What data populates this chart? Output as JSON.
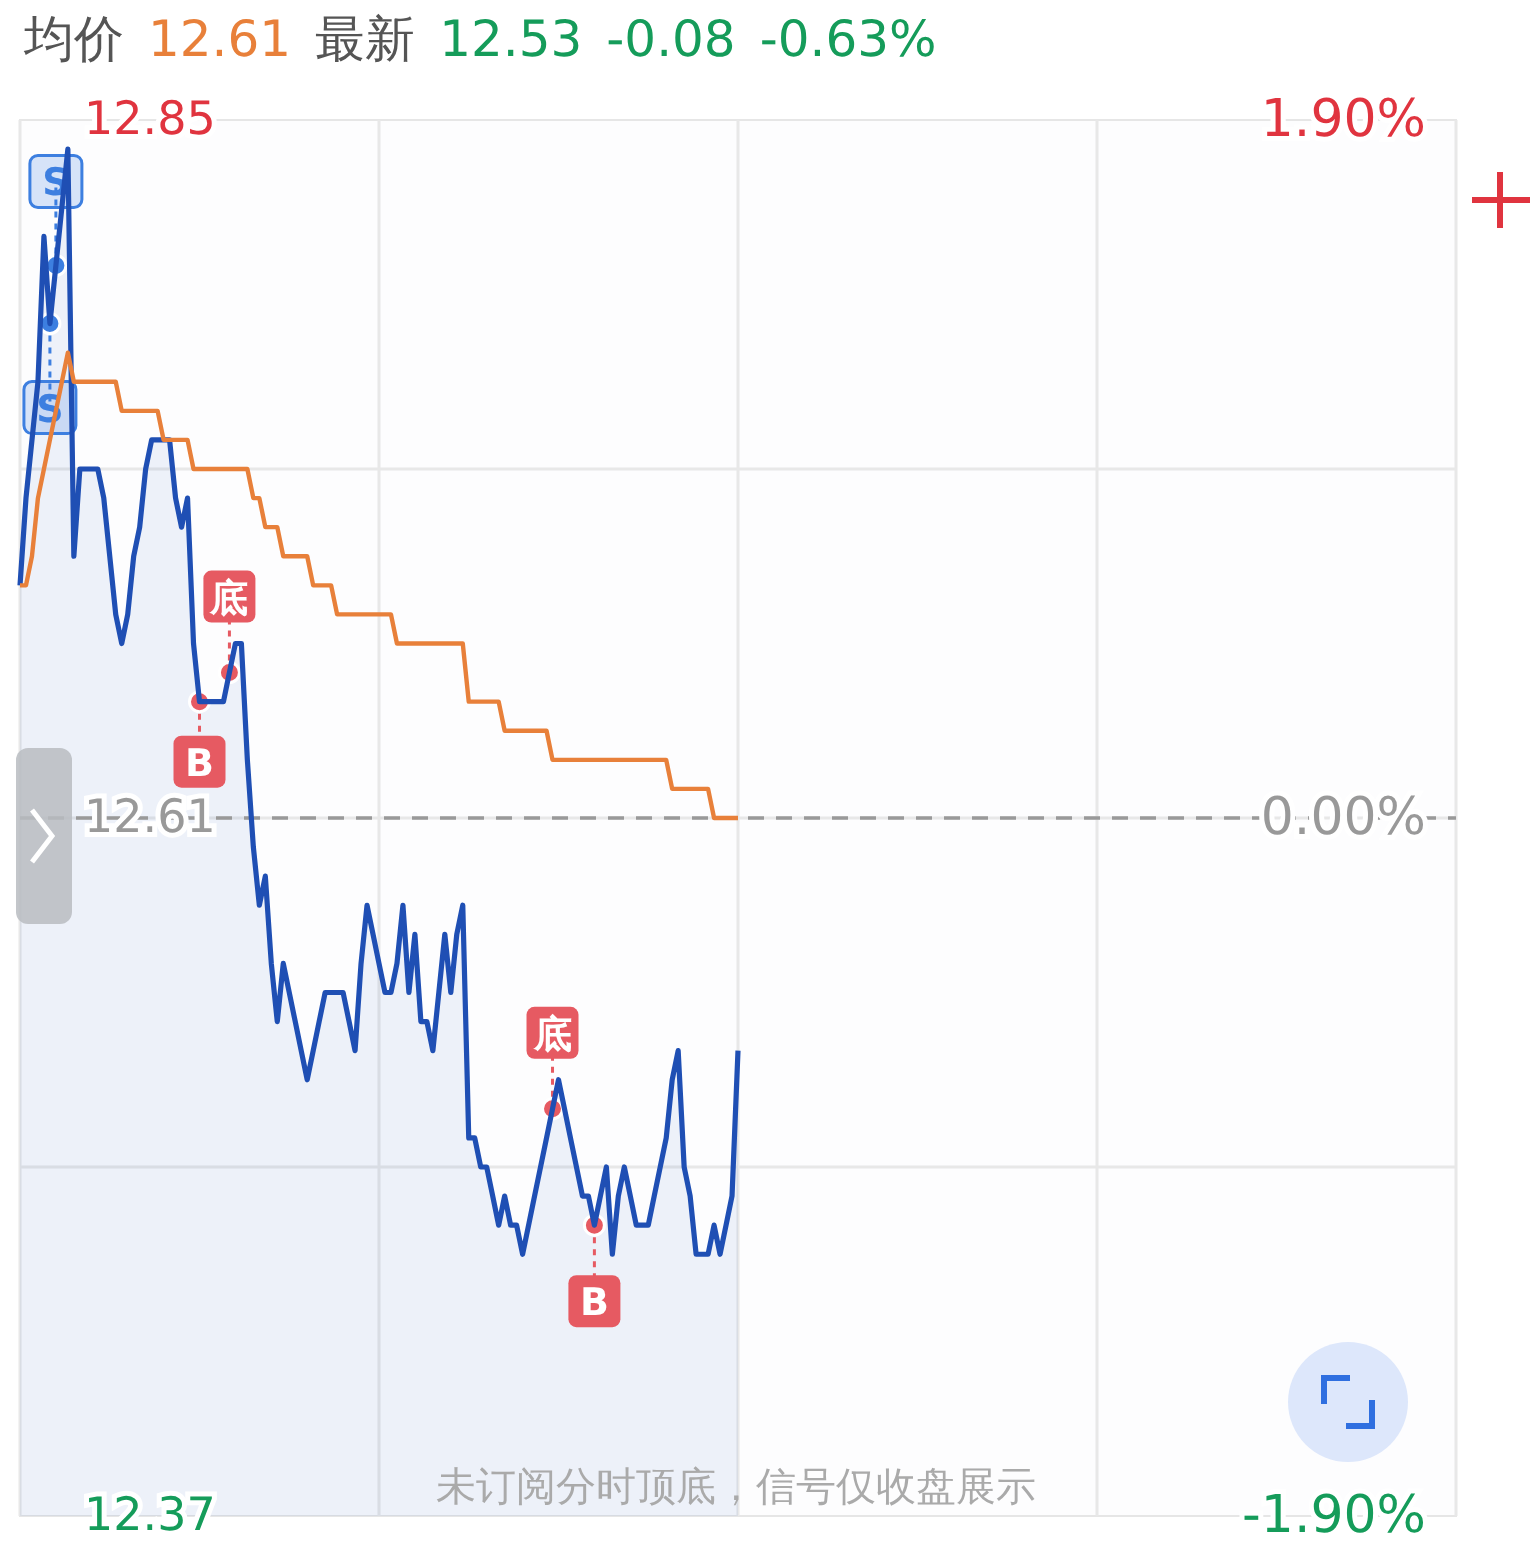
{
  "chart_data": {
    "type": "line",
    "title": "均价 12.61 最新 12.53 -0.08 -0.63%",
    "categories": [
      null,
      null,
      null,
      null,
      null,
      null,
      null,
      null,
      null,
      null,
      null,
      null,
      null,
      null,
      null,
      null,
      null,
      null,
      null,
      null,
      null,
      null,
      null,
      null,
      null,
      null,
      null,
      null,
      null,
      null,
      null,
      null,
      null,
      null,
      null,
      null,
      null,
      null,
      null,
      null,
      null,
      null,
      null,
      null,
      null,
      null,
      null,
      null,
      null,
      null,
      null,
      null,
      null,
      null,
      null,
      null,
      null,
      null,
      null,
      null,
      null,
      null,
      null,
      null,
      null,
      null,
      null,
      null,
      null,
      null,
      null,
      null,
      null,
      null,
      null,
      null,
      null,
      null,
      null,
      null,
      null,
      null,
      null,
      null,
      null,
      null,
      null,
      null,
      null,
      null,
      null,
      null,
      null,
      null,
      null,
      null,
      null,
      null,
      null,
      null,
      null,
      null,
      null,
      null,
      null,
      null,
      null,
      null,
      null,
      null,
      null,
      null,
      null,
      null,
      null,
      null,
      null,
      null,
      null,
      null,
      null,
      null,
      null,
      null,
      null,
      null,
      null,
      null,
      null,
      null,
      null,
      null,
      null,
      null,
      null,
      null,
      null,
      null,
      null,
      null,
      null,
      null,
      null,
      null,
      null,
      null,
      null,
      null,
      null,
      null,
      null,
      null,
      null,
      null,
      null,
      null,
      null,
      null,
      null,
      null,
      null,
      null,
      null,
      null,
      null,
      null,
      null,
      null,
      null,
      null,
      null,
      null,
      null,
      null,
      null,
      null,
      null,
      null,
      null,
      null,
      null,
      null,
      null,
      null,
      null,
      null,
      null,
      null,
      null,
      null,
      null,
      null,
      null,
      null,
      null,
      null,
      null,
      null,
      null,
      null,
      null,
      null,
      null,
      null,
      null,
      null,
      null,
      null,
      null,
      null,
      null,
      null,
      null,
      null,
      null,
      null,
      null,
      null,
      null,
      null,
      null,
      null,
      null,
      null,
      null,
      null,
      null,
      null,
      null,
      null,
      null,
      null,
      null,
      null,
      null,
      null,
      null,
      null,
      null,
      null,
      null
    ],
    "ylim": [
      12.37,
      12.85
    ],
    "yticks": [
      12.85,
      {
        "value": 12.73,
        "label": null
      },
      12.61,
      {
        "value": 12.49,
        "label": null
      },
      12.37
    ],
    "y2lim": [
      -1.9,
      1.9
    ],
    "y2ticks": [
      {
        "value": 1.9,
        "label": "1.90%"
      },
      {
        "value": 0,
        "label": "0.00%"
      },
      {
        "value": -1.9,
        "label": "-1.90%"
      }
    ],
    "tick_labels": "y",
    "grid": true,
    "ref_lines": [
      {
        "axis": "y",
        "value": 12.61,
        "color": "#999999",
        "line_style": "dashed"
      }
    ],
    "series": [
      {
        "type": "area",
        "color": "#1f4fb4",
        "values": [
          12.69,
          12.72,
          12.74,
          12.76,
          12.81,
          12.78,
          12.8,
          12.82,
          12.84,
          12.7,
          12.73,
          12.73,
          12.73,
          12.73,
          12.72,
          12.7,
          12.68,
          12.67,
          12.68,
          12.7,
          12.71,
          12.73,
          12.74,
          12.74,
          12.74,
          12.74,
          12.72,
          12.71,
          12.72,
          12.67,
          12.65,
          12.65,
          12.65,
          12.65,
          12.65,
          12.66,
          12.67,
          12.67,
          12.63,
          12.6,
          12.58,
          12.59,
          12.56,
          12.54,
          12.56,
          12.55,
          12.54,
          12.53,
          12.52,
          12.53,
          12.54,
          12.55,
          12.55,
          12.55,
          12.55,
          12.54,
          12.53,
          12.56,
          12.58,
          12.57,
          12.56,
          12.55,
          12.55,
          12.56,
          12.58,
          12.55,
          12.57,
          12.54,
          12.54,
          12.53,
          12.55,
          12.57,
          12.55,
          12.57,
          12.58,
          12.5,
          12.5,
          12.49,
          12.49,
          12.48,
          12.47,
          12.48,
          12.47,
          12.47,
          12.46,
          12.47,
          12.48,
          12.49,
          12.5,
          12.51,
          12.52,
          12.51,
          12.5,
          12.49,
          12.48,
          12.48,
          12.47,
          12.48,
          12.49,
          12.46,
          12.48,
          12.49,
          12.48,
          12.47,
          12.47,
          12.47,
          12.48,
          12.49,
          12.5,
          12.52,
          12.53,
          12.49,
          12.48,
          12.46,
          12.46,
          12.46,
          12.47,
          12.46,
          12.47,
          12.48,
          12.53,
          null,
          null,
          null,
          null,
          null,
          null,
          null,
          null,
          null,
          null,
          null,
          null,
          null,
          null,
          null,
          null,
          null,
          null,
          null,
          null,
          null,
          null,
          null,
          null,
          null,
          null,
          null,
          null,
          null,
          null,
          null,
          null,
          null,
          null,
          null,
          null,
          null,
          null,
          null,
          null,
          null,
          null,
          null,
          null,
          null,
          null,
          null,
          null,
          null,
          null,
          null,
          null,
          null,
          null,
          null,
          null,
          null,
          null,
          null,
          null,
          null,
          null,
          null,
          null,
          null,
          null,
          null,
          null,
          null,
          null,
          null,
          null,
          null,
          null,
          null,
          null,
          null,
          null,
          null,
          null,
          null,
          null,
          null,
          null,
          null,
          null,
          null,
          null,
          null,
          null,
          null,
          null,
          null,
          null,
          null,
          null,
          null,
          null,
          null,
          null,
          null,
          null,
          null,
          null,
          null,
          null,
          null,
          null,
          null,
          null,
          null,
          null,
          null,
          null,
          null,
          null,
          null,
          null,
          null,
          null
        ]
      },
      {
        "color": "#e8803a",
        "values": [
          12.69,
          12.69,
          12.7,
          12.72,
          12.73,
          12.74,
          12.75,
          12.76,
          12.77,
          12.76,
          12.76,
          12.76,
          12.76,
          12.76,
          12.76,
          12.76,
          12.76,
          12.75,
          12.75,
          12.75,
          12.75,
          12.75,
          12.75,
          12.75,
          12.74,
          12.74,
          12.74,
          12.74,
          12.74,
          12.73,
          12.73,
          12.73,
          12.73,
          12.73,
          12.73,
          12.73,
          12.73,
          12.73,
          12.73,
          12.72,
          12.72,
          12.71,
          12.71,
          12.71,
          12.7,
          12.7,
          12.7,
          12.7,
          12.7,
          12.69,
          12.69,
          12.69,
          12.69,
          12.68,
          12.68,
          12.68,
          12.68,
          12.68,
          12.68,
          12.68,
          12.68,
          12.68,
          12.68,
          12.67,
          12.67,
          12.67,
          12.67,
          12.67,
          12.67,
          12.67,
          12.67,
          12.67,
          12.67,
          12.67,
          12.67,
          12.65,
          12.65,
          12.65,
          12.65,
          12.65,
          12.65,
          12.64,
          12.64,
          12.64,
          12.64,
          12.64,
          12.64,
          12.64,
          12.64,
          12.63,
          12.63,
          12.63,
          12.63,
          12.63,
          12.63,
          12.63,
          12.63,
          12.63,
          12.63,
          12.63,
          12.63,
          12.63,
          12.63,
          12.63,
          12.63,
          12.63,
          12.63,
          12.63,
          12.63,
          12.62,
          12.62,
          12.62,
          12.62,
          12.62,
          12.62,
          12.62,
          12.61,
          12.61,
          12.61,
          12.61,
          12.61,
          null,
          null,
          null,
          null,
          null,
          null,
          null,
          null,
          null,
          null,
          null,
          null,
          null,
          null,
          null,
          null,
          null,
          null,
          null,
          null,
          null,
          null,
          null,
          null,
          null,
          null,
          null,
          null,
          null,
          null,
          null,
          null,
          null,
          null,
          null,
          null,
          null,
          null,
          null,
          null,
          null,
          null,
          null,
          null,
          null,
          null,
          null,
          null,
          null,
          null,
          null,
          null,
          null,
          null,
          null,
          null,
          null,
          null,
          null,
          null,
          null,
          null,
          null,
          null,
          null,
          null,
          null,
          null,
          null,
          null,
          null,
          null,
          null,
          null,
          null,
          null,
          null,
          null,
          null,
          null,
          null,
          null,
          null,
          null,
          null,
          null,
          null,
          null,
          null,
          null,
          null,
          null,
          null,
          null,
          null,
          null,
          null,
          null,
          null,
          null,
          null,
          null,
          null,
          null,
          null,
          null,
          null,
          null,
          null,
          null,
          null,
          null,
          null,
          null,
          null,
          null,
          null,
          null,
          null,
          null
        ]
      }
    ],
    "annotations": [
      {
        "text": "S",
        "y": 12.78
      },
      {
        "text": "S",
        "y": 12.8
      },
      {
        "text": "B",
        "y": 12.65
      },
      {
        "text": "底",
        "y": 12.66
      },
      {
        "text": "底",
        "y": 12.51
      },
      {
        "text": "B",
        "y": 12.47
      },
      "未订阅分时顶底，信号仅收盘展示"
    ]
  }
}
